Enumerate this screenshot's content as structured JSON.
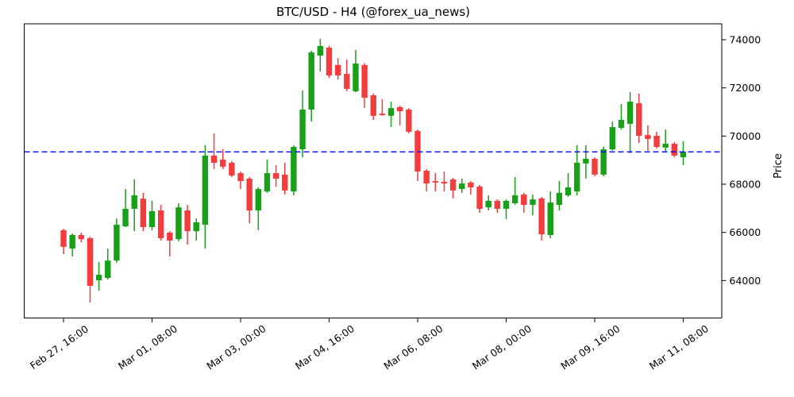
{
  "title": "BTC/USD - H4 (@forex_ua_news)",
  "y_axis": {
    "label": "Price",
    "ticks": [
      64000,
      66000,
      68000,
      70000,
      72000,
      74000
    ]
  },
  "x_axis": {
    "tick_labels": [
      "Feb 27, 16:00",
      "Mar 01, 08:00",
      "Mar 03, 00:00",
      "Mar 04, 16:00",
      "Mar 06, 08:00",
      "Mar 08, 00:00",
      "Mar 09, 16:00",
      "Mar 11, 08:00"
    ]
  },
  "ref_line": {
    "price": 69340,
    "color": "#0000ff",
    "style": "dashed"
  },
  "chart_data": {
    "type": "candlestick",
    "symbol": "BTC/USD",
    "timeframe": "H4",
    "source_handle": "@forex_ua_news",
    "title": "BTC/USD - H4 (@forex_ua_news)",
    "ylabel": "Price",
    "ylim": [
      62500,
      74750
    ],
    "grid": false,
    "up_color": "#18a018",
    "down_color": "#f43c3c",
    "x_tick_indices": [
      0,
      10,
      20,
      30,
      40,
      50,
      60,
      70
    ],
    "ohlc_format": [
      "open",
      "high",
      "low",
      "close"
    ],
    "ohlc": [
      [
        66090,
        66150,
        65100,
        65400
      ],
      [
        65330,
        65960,
        65000,
        65890
      ],
      [
        65890,
        65990,
        65590,
        65720
      ],
      [
        65760,
        65820,
        63090,
        63780
      ],
      [
        64010,
        64770,
        63580,
        64240
      ],
      [
        64110,
        65330,
        64040,
        64830
      ],
      [
        64830,
        66580,
        64740,
        66320
      ],
      [
        66250,
        67800,
        66220,
        66980
      ],
      [
        66980,
        68200,
        66050,
        67540
      ],
      [
        67400,
        67640,
        66050,
        66220
      ],
      [
        66220,
        67310,
        66080,
        66880
      ],
      [
        66910,
        67140,
        65660,
        65760
      ],
      [
        65990,
        66050,
        65000,
        65660
      ],
      [
        65720,
        67210,
        65630,
        67040
      ],
      [
        66910,
        67140,
        65490,
        66050
      ],
      [
        66050,
        66580,
        65660,
        66420
      ],
      [
        66320,
        69620,
        65330,
        69190
      ],
      [
        69190,
        70110,
        68630,
        68890
      ],
      [
        69020,
        69450,
        68630,
        68730
      ],
      [
        68890,
        68960,
        68300,
        68360
      ],
      [
        68460,
        68530,
        67800,
        68130
      ],
      [
        68230,
        68300,
        66380,
        66910
      ],
      [
        66910,
        67870,
        66090,
        67800
      ],
      [
        67700,
        69020,
        67640,
        68460
      ],
      [
        68460,
        68790,
        67900,
        68230
      ],
      [
        68400,
        68890,
        67570,
        67740
      ],
      [
        67700,
        69620,
        67540,
        69550
      ],
      [
        69450,
        71890,
        69120,
        71100
      ],
      [
        71100,
        73540,
        70600,
        73470
      ],
      [
        73340,
        74030,
        72680,
        73740
      ],
      [
        73670,
        73750,
        72410,
        72520
      ],
      [
        72950,
        73230,
        72350,
        72520
      ],
      [
        72580,
        73180,
        71860,
        71960
      ],
      [
        71860,
        73570,
        71820,
        73010
      ],
      [
        72950,
        73030,
        71160,
        71590
      ],
      [
        71690,
        71760,
        70670,
        70840
      ],
      [
        70930,
        71530,
        70840,
        70870
      ],
      [
        70840,
        71430,
        70370,
        71160
      ],
      [
        71200,
        71260,
        70440,
        71030
      ],
      [
        71100,
        71160,
        70110,
        70180
      ],
      [
        70210,
        70270,
        68130,
        68530
      ],
      [
        68560,
        68630,
        67700,
        68030
      ],
      [
        68130,
        68460,
        67700,
        68070
      ],
      [
        68100,
        68530,
        67700,
        68030
      ],
      [
        68200,
        68260,
        67410,
        67740
      ],
      [
        67800,
        68230,
        67640,
        68030
      ],
      [
        68070,
        68130,
        67570,
        67870
      ],
      [
        67900,
        67970,
        66810,
        66980
      ],
      [
        67040,
        67540,
        66910,
        67310
      ],
      [
        67310,
        67370,
        66810,
        66980
      ],
      [
        66980,
        67370,
        66550,
        67310
      ],
      [
        67210,
        68300,
        67140,
        67540
      ],
      [
        67570,
        67640,
        66810,
        67140
      ],
      [
        67140,
        67570,
        66710,
        67370
      ],
      [
        67410,
        67470,
        65660,
        65920
      ],
      [
        65890,
        67700,
        65760,
        67240
      ],
      [
        67140,
        68130,
        66910,
        67640
      ],
      [
        67540,
        68460,
        67470,
        67870
      ],
      [
        67700,
        69620,
        67540,
        68890
      ],
      [
        68860,
        69620,
        68230,
        69060
      ],
      [
        69060,
        69120,
        68330,
        68400
      ],
      [
        68400,
        69550,
        68330,
        69450
      ],
      [
        69450,
        70600,
        69390,
        70370
      ],
      [
        70340,
        71330,
        70270,
        70670
      ],
      [
        70510,
        71820,
        69290,
        71430
      ],
      [
        71360,
        71760,
        69710,
        70010
      ],
      [
        70040,
        70440,
        69390,
        69880
      ],
      [
        70010,
        70180,
        69480,
        69550
      ],
      [
        69520,
        70270,
        69350,
        69680
      ],
      [
        69680,
        69750,
        69120,
        69190
      ],
      [
        69120,
        69780,
        68790,
        69350
      ]
    ]
  }
}
